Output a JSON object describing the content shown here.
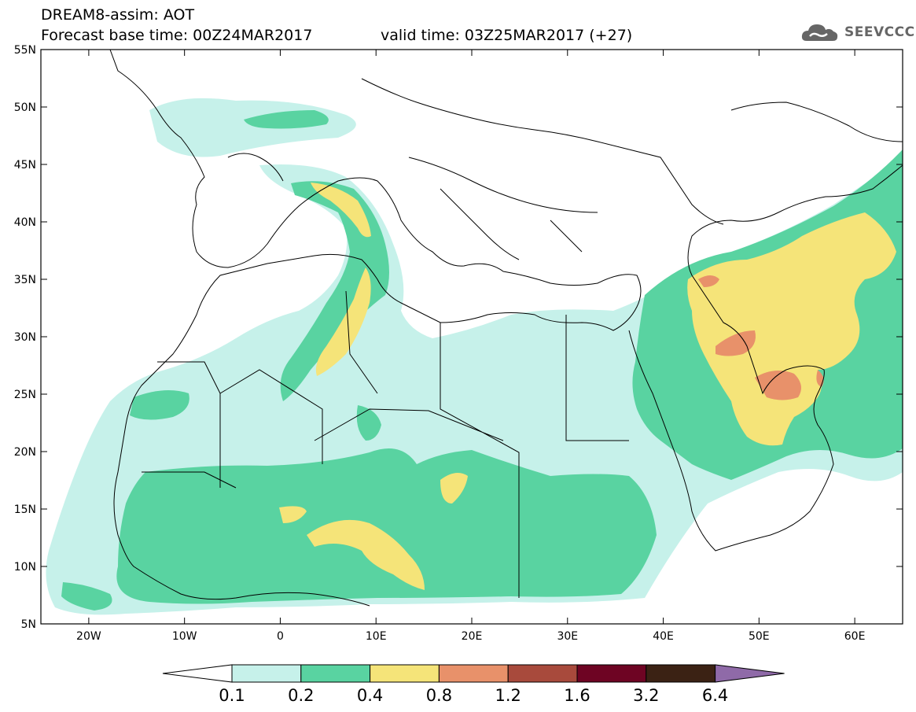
{
  "header": {
    "line1": "DREAM8-assim: AOT",
    "line2": "Forecast base time: 00Z24MAR2017",
    "valid": "valid time: 03Z25MAR2017 (+27)"
  },
  "logo": {
    "text": "SEEVCCC",
    "icon": "cloud-icon"
  },
  "map": {
    "lon_labels": [
      "20W",
      "10W",
      "0",
      "10E",
      "20E",
      "30E",
      "40E",
      "50E",
      "60E"
    ],
    "lat_labels": [
      "55N",
      "50N",
      "45N",
      "40N",
      "35N",
      "30N",
      "25N",
      "20N",
      "15N",
      "10N",
      "5N"
    ],
    "lon_values": [
      -20,
      -10,
      0,
      10,
      20,
      30,
      40,
      50,
      60
    ],
    "lat_values": [
      55,
      50,
      45,
      40,
      35,
      30,
      25,
      20,
      15,
      10,
      5
    ],
    "lon_range": [
      -25,
      65
    ],
    "lat_range": [
      5,
      55
    ]
  },
  "colorbar": {
    "labels": [
      "0.1",
      "0.2",
      "0.4",
      "0.8",
      "1.2",
      "1.6",
      "3.2",
      "6.4"
    ],
    "colors": [
      "#ffffff",
      "#c6f1ea",
      "#59d3a1",
      "#f5e479",
      "#e8916a",
      "#a84a3c",
      "#6e0423",
      "#3b2214",
      "#8f6aa8"
    ]
  }
}
